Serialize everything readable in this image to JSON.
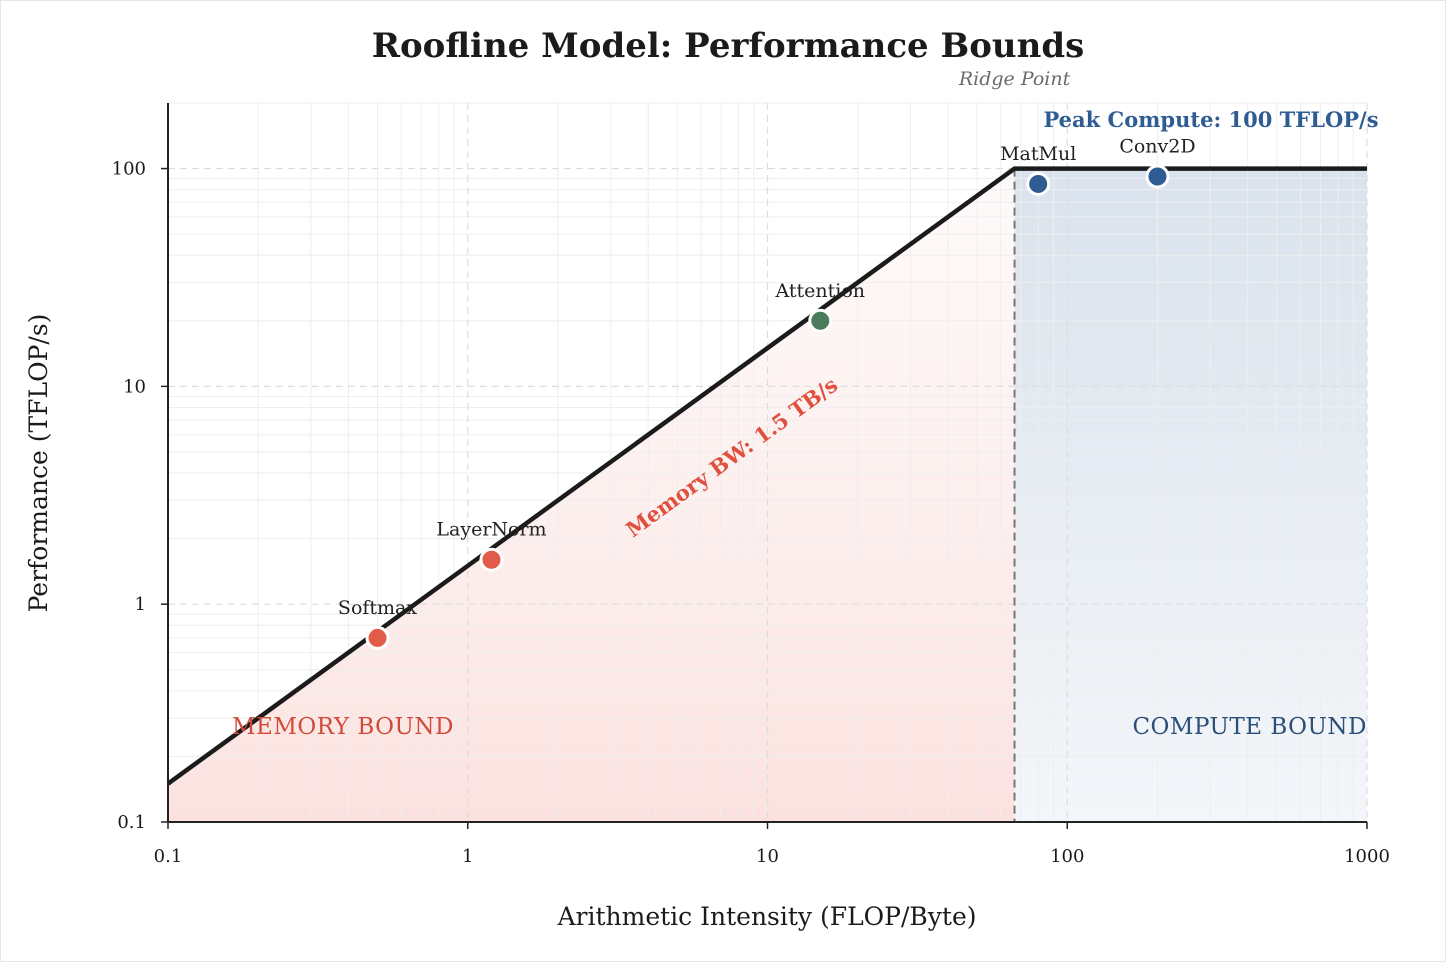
{
  "chart_data": {
    "type": "line",
    "title": "Roofline Model: Performance Bounds",
    "xlabel": "Arithmetic Intensity (FLOP/Byte)",
    "ylabel": "Performance (TFLOP/s)",
    "xscale": "log",
    "yscale": "log",
    "xlim": [
      0.1,
      1000
    ],
    "ylim": [
      0.1,
      200
    ],
    "xticks": [
      {
        "value": 0.1,
        "label": "0.1"
      },
      {
        "value": 1,
        "label": "1"
      },
      {
        "value": 10,
        "label": "10"
      },
      {
        "value": 100,
        "label": "100"
      },
      {
        "value": 1000,
        "label": "1000"
      }
    ],
    "yticks": [
      {
        "value": 0.1,
        "label": "0.1"
      },
      {
        "value": 1,
        "label": "1"
      },
      {
        "value": 10,
        "label": "10"
      },
      {
        "value": 100,
        "label": "100"
      }
    ],
    "roofline": {
      "memory_bandwidth_tb_s": 1.5,
      "peak_compute_tflops": 100,
      "ridge_point_x": 66.7,
      "x": [
        0.1,
        66.7,
        1000
      ],
      "y": [
        0.15,
        100,
        100
      ]
    },
    "annotations": {
      "ridge": "Ridge Point",
      "peak": "Peak Compute: 100 TFLOP/s",
      "bandwidth": "Memory BW: 1.5 TB/s",
      "memory_region": "MEMORY BOUND",
      "compute_region": "COMPUTE BOUND"
    },
    "grid": true,
    "points": [
      {
        "name": "Softmax",
        "x": 0.5,
        "y": 0.7,
        "category": "memory",
        "color": "#e25a48"
      },
      {
        "name": "LayerNorm",
        "x": 1.2,
        "y": 1.6,
        "category": "memory",
        "color": "#e25a48"
      },
      {
        "name": "Attention",
        "x": 15,
        "y": 20,
        "category": "balanced",
        "color": "#4a7c5c"
      },
      {
        "name": "MatMul",
        "x": 80,
        "y": 85,
        "category": "compute",
        "color": "#2f5c93"
      },
      {
        "name": "Conv2D",
        "x": 200,
        "y": 92,
        "category": "compute",
        "color": "#2f5c93"
      }
    ],
    "colors": {
      "roofline": "#1b1b1b",
      "memory": "#e0503f",
      "memory_region_text": "#d14a3a",
      "compute": "#2f5c93",
      "compute_region_text": "#2a4f78",
      "ridge": "#777777",
      "memory_fill": "#fbe4e1",
      "compute_fill": "#d6e0eb"
    }
  }
}
